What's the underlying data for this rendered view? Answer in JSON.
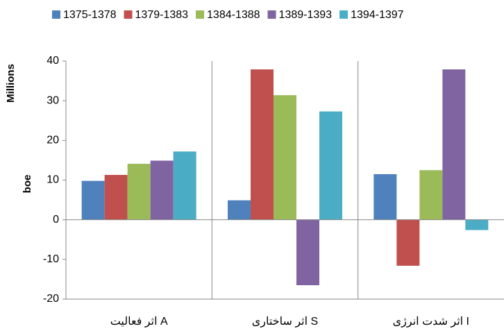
{
  "chart_data": {
    "type": "bar",
    "y_label": "boe",
    "y_unit_label": "Millions",
    "categories": [
      "اثر فعالیت A",
      "اثر ساختاری S",
      "اثر شدت انرژی I"
    ],
    "series": [
      {
        "name": "1375-1378",
        "color": "#4f81bd",
        "values": [
          9.8,
          4.9,
          11.5
        ]
      },
      {
        "name": "1379-1383",
        "color": "#c0504d",
        "values": [
          11.3,
          37.9,
          -11.6
        ]
      },
      {
        "name": "1384-1388",
        "color": "#9bbb59",
        "values": [
          14.1,
          31.4,
          12.5
        ]
      },
      {
        "name": "1389-1393",
        "color": "#8064a2",
        "values": [
          14.9,
          -16.5,
          37.9
        ]
      },
      {
        "name": "1394-1397",
        "color": "#4bacc6",
        "values": [
          17.2,
          27.3,
          -2.6
        ]
      }
    ],
    "ylim": [
      -20,
      40
    ],
    "yticks": [
      -20,
      -10,
      0,
      10,
      20,
      30,
      40
    ],
    "legend": "top"
  }
}
